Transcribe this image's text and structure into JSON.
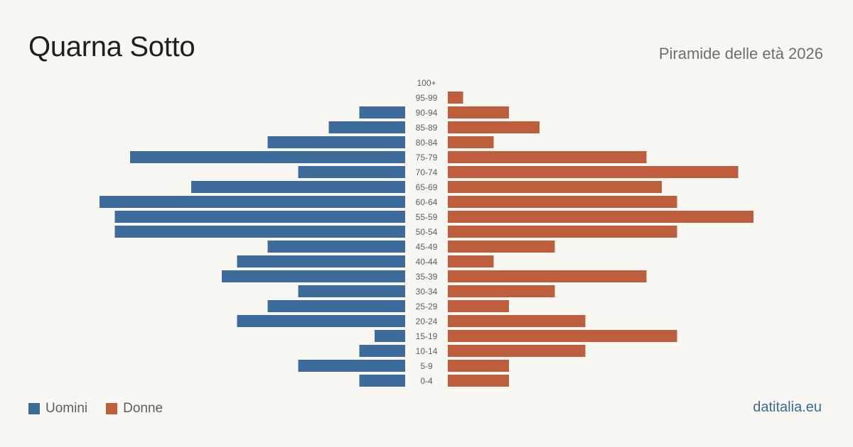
{
  "header": {
    "title": "Quarna Sotto",
    "subtitle": "Piramide delle età 2026"
  },
  "legend": {
    "men_label": "Uomini",
    "women_label": "Donne"
  },
  "footer": {
    "brand": "datitalia.eu"
  },
  "colors": {
    "men": "#3c6b9c",
    "women": "#bd5f3c",
    "background": "#f9f7f2",
    "label": "#5f5f5f"
  },
  "chart_data": {
    "type": "bar",
    "orientation": "horizontal",
    "layout": "population-pyramid",
    "categories": [
      "100+",
      "95-99",
      "90-94",
      "85-89",
      "80-84",
      "75-79",
      "70-74",
      "65-69",
      "60-64",
      "55-59",
      "50-54",
      "45-49",
      "40-44",
      "35-39",
      "30-34",
      "25-29",
      "20-24",
      "15-19",
      "10-14",
      "5-9",
      "0-4"
    ],
    "series": [
      {
        "name": "Uomini",
        "values": [
          0,
          0,
          3,
          5,
          9,
          18,
          7,
          14,
          20,
          19,
          19,
          9,
          11,
          12,
          7,
          9,
          11,
          2,
          3,
          7,
          3
        ]
      },
      {
        "name": "Donne",
        "values": [
          0,
          1,
          4,
          6,
          3,
          13,
          19,
          14,
          15,
          20,
          15,
          7,
          3,
          13,
          7,
          4,
          9,
          15,
          9,
          4,
          4
        ]
      }
    ],
    "legend_position": "bottom-left",
    "grid": false
  }
}
